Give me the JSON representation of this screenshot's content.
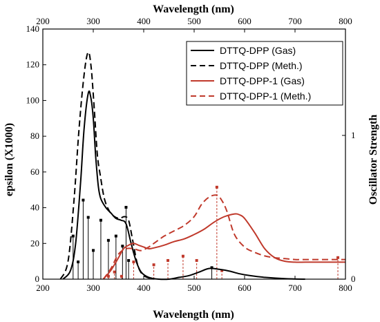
{
  "chart_data": {
    "type": "line",
    "x_label_bottom": "Wavelength (nm)",
    "x_label_top": "Wavelength (nm)",
    "y_label_left": "epsilon (X1000)",
    "y_label_right": "Oscillator Strength",
    "xlim": [
      200,
      800
    ],
    "ylim": [
      0,
      140
    ],
    "y2lim": [
      0,
      1.74
    ],
    "x_ticks": [
      "200",
      "300",
      "400",
      "500",
      "600",
      "700",
      "800"
    ],
    "y_ticks": [
      "0",
      "20",
      "40",
      "60",
      "80",
      "100",
      "120",
      "140"
    ],
    "y2_ticks": [
      "0",
      "1"
    ],
    "legend_position": "top-right",
    "colors": {
      "black": "#000000",
      "red": "#c0392b"
    },
    "series": [
      {
        "name": "DTTQ-DPP (Gas)",
        "color": "#000000",
        "dash": "solid",
        "x": [
          240,
          255,
          265,
          275,
          282,
          290,
          295,
          300,
          305,
          310,
          315,
          325,
          335,
          345,
          355,
          365,
          375,
          385,
          395,
          410,
          430,
          450,
          470,
          490,
          510,
          530,
          550,
          570,
          590,
          610,
          640,
          680,
          720
        ],
        "y": [
          0,
          5,
          20,
          55,
          85,
          104,
          102,
          90,
          68,
          52,
          45,
          40,
          37,
          34,
          33,
          31,
          20,
          10,
          4,
          1,
          0,
          0,
          1,
          2,
          4,
          6,
          5.5,
          4.5,
          3,
          2,
          1,
          0.3,
          0
        ]
      },
      {
        "name": "DTTQ-DPP (Meth.)",
        "color": "#000000",
        "dash": "dashed",
        "x": [
          235,
          250,
          262,
          272,
          282,
          290,
          296,
          302,
          308,
          314,
          322,
          332,
          342,
          352,
          362,
          370,
          378,
          388,
          400,
          420
        ],
        "y": [
          0,
          10,
          45,
          85,
          115,
          127,
          118,
          95,
          70,
          58,
          45,
          38,
          35,
          34,
          35,
          33,
          22,
          8,
          2,
          0
        ]
      },
      {
        "name": "DTTQ-DPP-1 (Gas)",
        "color": "#c0392b",
        "dash": "solid",
        "x": [
          320,
          335,
          350,
          360,
          370,
          380,
          390,
          400,
          410,
          420,
          440,
          460,
          480,
          500,
          520,
          540,
          560,
          580,
          590,
          600,
          620,
          640,
          660,
          680,
          700,
          720,
          740,
          760,
          780,
          800
        ],
        "y": [
          0,
          5,
          12,
          17,
          19,
          20,
          19,
          18,
          17,
          17.5,
          19,
          21,
          22.5,
          25,
          28,
          32,
          35,
          36.5,
          36,
          34,
          26,
          17,
          12,
          10,
          9.5,
          9.5,
          9.5,
          9.5,
          9.5,
          9.5
        ]
      },
      {
        "name": "DTTQ-DPP-1 (Meth.)",
        "color": "#c0392b",
        "dash": "dashed",
        "x": [
          320,
          335,
          350,
          365,
          380,
          395,
          410,
          420,
          430,
          440,
          460,
          480,
          500,
          515,
          530,
          545,
          555,
          565,
          580,
          600,
          620,
          640,
          660,
          680,
          700,
          720,
          740,
          760,
          780,
          800
        ],
        "y": [
          0,
          6,
          14,
          17,
          17,
          16,
          18,
          20,
          22,
          24,
          27,
          30,
          35,
          42,
          46,
          47,
          44,
          38,
          25,
          18,
          15,
          13,
          12,
          11.5,
          11,
          11,
          11,
          11,
          11,
          11
        ]
      }
    ],
    "stick_series": [
      {
        "color": "#000000",
        "x": [
          260,
          270,
          280,
          290,
          300,
          315,
          330,
          345,
          358,
          365,
          370,
          535
        ],
        "f": [
          0.3,
          0.12,
          0.55,
          0.43,
          0.2,
          0.41,
          0.27,
          0.3,
          0.23,
          0.5,
          0.13,
          0.08
        ]
      },
      {
        "color": "#c0392b",
        "x": [
          330,
          342,
          356,
          380,
          420,
          448,
          478,
          505,
          545,
          555,
          785
        ],
        "f": [
          0.02,
          0.05,
          0.02,
          0.12,
          0.1,
          0.13,
          0.16,
          0.13,
          0.64,
          0.06,
          0.15
        ]
      }
    ]
  }
}
